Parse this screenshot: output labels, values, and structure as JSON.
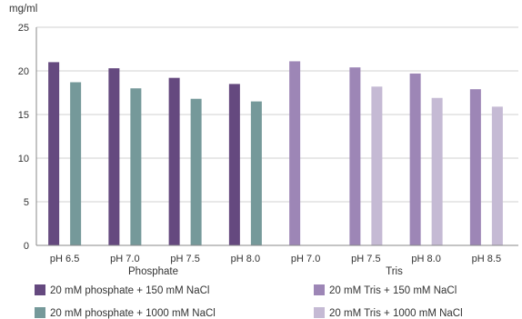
{
  "chart_data": {
    "type": "bar",
    "unit_label": "mg/ml",
    "ylim": [
      0,
      25
    ],
    "yticks": [
      0,
      5,
      10,
      15,
      20,
      25
    ],
    "grid": true,
    "categories": [
      "pH 6.5",
      "pH 7.0",
      "pH 7.5",
      "pH 8.0",
      "pH 7.0",
      "pH 7.5",
      "pH 8.0",
      "pH 8.5"
    ],
    "groups": [
      {
        "label": "Phosphate",
        "categories": [
          0,
          1,
          2,
          3
        ]
      },
      {
        "label": "Tris",
        "categories": [
          4,
          5,
          6,
          7
        ]
      }
    ],
    "series": [
      {
        "name": "20 mM phosphate + 150 mM NaCl",
        "color": "#65497f",
        "values": [
          21.0,
          20.3,
          19.2,
          18.5,
          null,
          null,
          null,
          null
        ]
      },
      {
        "name": "20 mM phosphate + 1000 mM NaCl",
        "color": "#75999a",
        "values": [
          18.7,
          18.0,
          16.8,
          16.5,
          null,
          null,
          null,
          null
        ]
      },
      {
        "name": "20 mM Tris + 150 mM NaCl",
        "color": "#9d86b6",
        "values": [
          null,
          null,
          null,
          null,
          21.1,
          20.4,
          19.7,
          17.9
        ]
      },
      {
        "name": "20 mM Tris + 1000 mM NaCl",
        "color": "#c5bad4",
        "values": [
          null,
          null,
          null,
          null,
          null,
          18.2,
          16.9,
          15.9
        ]
      }
    ],
    "legend_position": "bottom"
  }
}
